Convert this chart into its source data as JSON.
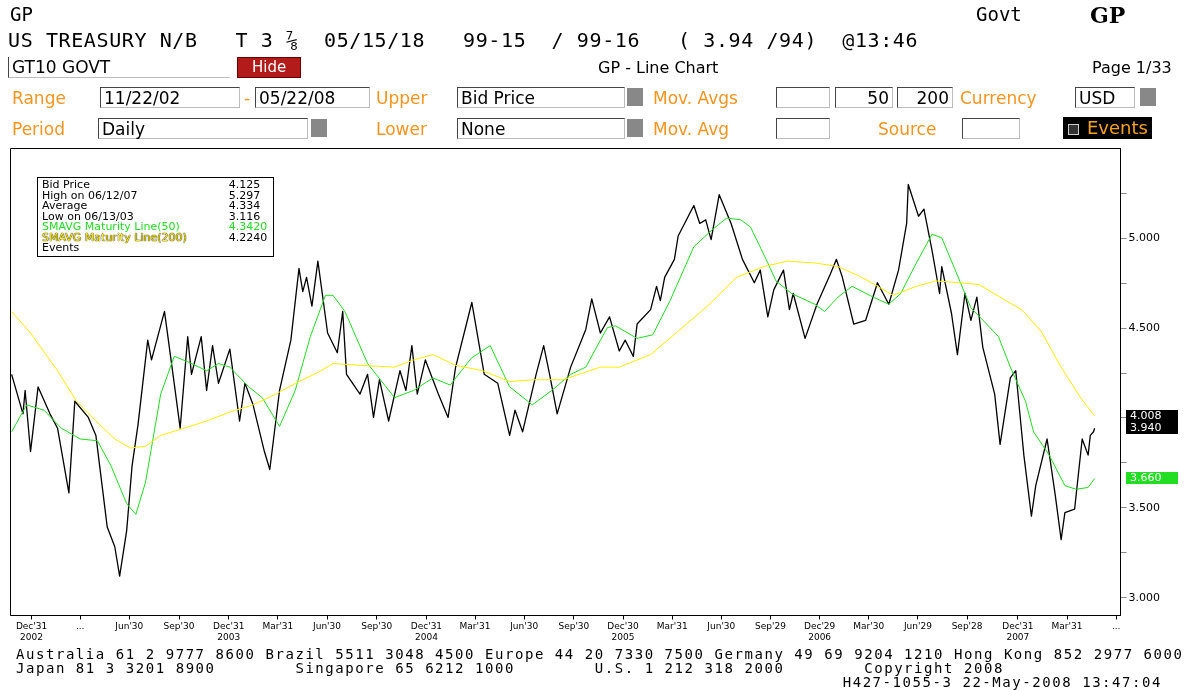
{
  "chart_data": {
    "type": "line",
    "title": "GP - Line Chart",
    "subtitle": "US TREASURY N/B   T 3 ⅞  05/15/18   99-15  / 99-16   ( 3.94 /94)  @13:46",
    "xlim": [
      "2002-11-22",
      "2008-07-08"
    ],
    "ylim": [
      2.9,
      5.5
    ],
    "xticks": [
      {
        "value": "2002-12-31",
        "label": "Dec'31\n2002"
      },
      {
        "value": "2003-03-31",
        "label": "..."
      },
      {
        "value": "2003-06-30",
        "label": "Jun'30"
      },
      {
        "value": "2003-09-30",
        "label": "Sep'30"
      },
      {
        "value": "2003-12-31",
        "label": "Dec'31\n2003"
      },
      {
        "value": "2004-03-31",
        "label": "Mar'31"
      },
      {
        "value": "2004-06-30",
        "label": "Jun'30"
      },
      {
        "value": "2004-09-30",
        "label": "Sep'30"
      },
      {
        "value": "2004-12-31",
        "label": "Dec'31\n2004"
      },
      {
        "value": "2005-03-31",
        "label": "Mar'31"
      },
      {
        "value": "2005-06-30",
        "label": "Jun'30"
      },
      {
        "value": "2005-09-30",
        "label": "Sep'30"
      },
      {
        "value": "2005-12-30",
        "label": "Dec'30\n2005"
      },
      {
        "value": "2006-03-31",
        "label": "Mar'31"
      },
      {
        "value": "2006-06-30",
        "label": "Jun'30"
      },
      {
        "value": "2006-09-29",
        "label": "Sep'29"
      },
      {
        "value": "2006-12-29",
        "label": "Dec'29\n2006"
      },
      {
        "value": "2007-03-30",
        "label": "Mar'30"
      },
      {
        "value": "2007-06-29",
        "label": "Jun'29"
      },
      {
        "value": "2007-09-28",
        "label": "Sep'28"
      },
      {
        "value": "2007-12-31",
        "label": "Dec'31\n2007"
      },
      {
        "value": "2008-03-31",
        "label": "Mar'31"
      },
      {
        "value": "2008-06-30",
        "label": "..."
      }
    ],
    "yticks": [
      {
        "value": 3,
        "label": "3.000"
      },
      {
        "value": 3.25,
        "label": null
      },
      {
        "value": 3.5,
        "label": "3.500"
      },
      {
        "value": 3.75,
        "label": null
      },
      {
        "value": 4,
        "label": null
      },
      {
        "value": 4.25,
        "label": null
      },
      {
        "value": 4.5,
        "label": "4.500"
      },
      {
        "value": 4.75,
        "label": null
      },
      {
        "value": 5,
        "label": "5.000"
      },
      {
        "value": 5.25,
        "label": null
      }
    ],
    "legend": "top left",
    "series": [
      {
        "name": "Bid Price",
        "color": "#000000",
        "x": [
          "2002-11-25",
          "2002-12-16",
          "2002-12-20",
          "2002-12-30",
          "2003-01-13",
          "2003-02-04",
          "2003-02-18",
          "2003-03-11",
          "2003-03-22",
          "2003-04-16",
          "2003-04-30",
          "2003-05-21",
          "2003-06-04",
          "2003-06-13",
          "2003-06-26",
          "2003-07-06",
          "2003-07-17",
          "2003-08-04",
          "2003-08-11",
          "2003-09-04",
          "2003-09-22",
          "2003-10-03",
          "2003-10-17",
          "2003-10-24",
          "2003-11-11",
          "2003-11-21",
          "2003-12-02",
          "2003-12-13",
          "2004-01-03",
          "2004-01-21",
          "2004-01-31",
          "2004-02-15",
          "2004-03-07",
          "2004-03-17",
          "2004-04-04",
          "2004-04-25",
          "2004-05-10",
          "2004-05-17",
          "2004-05-24",
          "2004-06-03",
          "2004-06-14",
          "2004-07-02",
          "2004-07-20",
          "2004-07-30",
          "2004-08-06",
          "2004-08-31",
          "2004-09-14",
          "2004-09-25",
          "2004-10-06",
          "2004-10-23",
          "2004-11-13",
          "2004-11-24",
          "2004-12-05",
          "2004-12-15",
          "2004-12-30",
          "2005-01-23",
          "2005-02-10",
          "2005-02-24",
          "2005-03-26",
          "2005-04-18",
          "2005-05-13",
          "2005-06-04",
          "2005-06-14",
          "2005-06-28",
          "2005-07-23",
          "2005-08-06",
          "2005-08-17",
          "2005-08-31",
          "2005-09-25",
          "2005-10-23",
          "2005-11-03",
          "2005-11-19",
          "2005-12-06",
          "2005-12-24",
          "2006-01-04",
          "2006-01-19",
          "2006-01-26",
          "2006-02-20",
          "2006-03-03",
          "2006-03-10",
          "2006-03-18",
          "2006-04-05",
          "2006-04-12",
          "2006-05-11",
          "2006-05-22",
          "2006-06-02",
          "2006-06-12",
          "2006-06-27",
          "2006-07-19",
          "2006-08-09",
          "2006-08-31",
          "2006-09-11",
          "2006-09-25",
          "2006-10-06",
          "2006-10-24",
          "2006-11-04",
          "2006-11-11",
          "2006-12-03",
          "2006-12-25",
          "2007-01-19",
          "2007-01-30",
          "2007-02-10",
          "2007-03-03",
          "2007-03-25",
          "2007-04-16",
          "2007-05-07",
          "2007-05-25",
          "2007-06-09",
          "2007-06-12",
          "2007-07-01",
          "2007-07-11",
          "2007-07-26",
          "2007-08-09",
          "2007-08-13",
          "2007-08-31",
          "2007-09-11",
          "2007-09-25",
          "2007-10-06",
          "2007-10-17",
          "2007-10-28",
          "2007-11-19",
          "2007-11-29",
          "2007-12-18",
          "2007-12-28",
          "2008-01-12",
          "2008-01-26",
          "2008-02-03",
          "2008-02-24",
          "2008-03-10",
          "2008-03-21",
          "2008-03-28",
          "2008-04-15",
          "2008-04-29",
          "2008-05-10",
          "2008-05-14",
          "2008-05-20",
          "2008-05-22"
        ],
        "values": [
          4.24,
          4.02,
          4.15,
          3.81,
          4.17,
          4.02,
          3.94,
          3.58,
          4.09,
          4.0,
          3.9,
          3.39,
          3.28,
          3.116,
          3.37,
          3.73,
          3.96,
          4.43,
          4.32,
          4.59,
          4.19,
          3.94,
          4.45,
          4.24,
          4.45,
          4.15,
          4.4,
          4.19,
          4.38,
          3.98,
          4.19,
          4.07,
          3.81,
          3.71,
          4.15,
          4.43,
          4.83,
          4.7,
          4.78,
          4.62,
          4.87,
          4.47,
          4.36,
          4.59,
          4.24,
          4.13,
          4.24,
          4.0,
          4.21,
          3.98,
          4.26,
          4.15,
          4.4,
          4.13,
          4.32,
          4.13,
          4.0,
          4.28,
          4.64,
          4.24,
          4.19,
          3.9,
          4.04,
          3.92,
          4.24,
          4.4,
          4.24,
          4.02,
          4.28,
          4.49,
          4.66,
          4.47,
          4.56,
          4.37,
          4.43,
          4.34,
          4.52,
          4.6,
          4.73,
          4.65,
          4.78,
          4.88,
          5.01,
          5.18,
          5.08,
          5.1,
          4.99,
          5.24,
          5.08,
          4.88,
          4.75,
          4.82,
          4.56,
          4.71,
          4.82,
          4.6,
          4.69,
          4.44,
          4.63,
          4.8,
          4.88,
          4.78,
          4.52,
          4.54,
          4.75,
          4.63,
          4.82,
          5.08,
          5.297,
          5.12,
          5.16,
          4.93,
          4.69,
          4.84,
          4.58,
          4.35,
          4.69,
          4.54,
          4.67,
          4.39,
          4.13,
          3.85,
          4.22,
          4.26,
          3.79,
          3.45,
          3.62,
          3.88,
          3.57,
          3.32,
          3.47,
          3.49,
          3.88,
          3.79,
          3.9,
          3.92,
          3.94
        ]
      },
      {
        "name": "SMAVG Maturity Line(50)",
        "color": "#22dd22",
        "x": [
          "2002-11-25",
          "2002-12-23",
          "2003-01-24",
          "2003-02-25",
          "2003-04-01",
          "2003-05-03",
          "2003-05-28",
          "2003-06-26",
          "2003-07-13",
          "2003-07-31",
          "2003-08-28",
          "2003-09-22",
          "2003-10-17",
          "2003-11-21",
          "2003-12-13",
          "2004-01-03",
          "2004-02-07",
          "2004-03-03",
          "2004-04-04",
          "2004-05-03",
          "2004-05-31",
          "2004-06-28",
          "2004-07-12",
          "2004-08-03",
          "2004-09-14",
          "2004-11-03",
          "2004-12-08",
          "2005-01-13",
          "2005-02-14",
          "2005-03-25",
          "2005-04-29",
          "2005-06-04",
          "2005-07-16",
          "2005-08-21",
          "2005-09-25",
          "2005-10-23",
          "2005-11-19",
          "2005-12-02",
          "2005-12-17",
          "2006-01-26",
          "2006-02-24",
          "2006-03-28",
          "2006-05-11",
          "2006-06-16",
          "2006-07-11",
          "2006-08-06",
          "2006-08-24",
          "2006-09-25",
          "2006-10-10",
          "2006-11-08",
          "2006-12-21",
          "2007-01-08",
          "2007-02-02",
          "2007-02-28",
          "2007-04-08",
          "2007-05-07",
          "2007-05-29",
          "2007-06-27",
          "2007-07-26",
          "2007-08-13",
          "2007-09-07",
          "2007-10-06",
          "2007-11-04",
          "2007-11-26",
          "2007-12-18",
          "2008-01-15",
          "2008-01-30",
          "2008-02-28",
          "2008-03-28",
          "2008-04-18",
          "2008-05-10",
          "2008-05-22"
        ],
        "values": [
          3.92,
          4.07,
          4.04,
          3.94,
          3.88,
          3.87,
          3.73,
          3.52,
          3.46,
          3.64,
          4.13,
          4.34,
          4.31,
          4.26,
          4.3,
          4.28,
          4.17,
          4.11,
          3.95,
          4.15,
          4.45,
          4.68,
          4.68,
          4.59,
          4.3,
          4.11,
          4.15,
          4.22,
          4.18,
          4.33,
          4.4,
          4.17,
          4.07,
          4.15,
          4.24,
          4.28,
          4.43,
          4.5,
          4.51,
          4.44,
          4.46,
          4.65,
          4.95,
          5.05,
          5.11,
          5.1,
          5.06,
          4.86,
          4.76,
          4.69,
          4.63,
          4.59,
          4.67,
          4.73,
          4.67,
          4.63,
          4.69,
          4.86,
          5.02,
          5.0,
          4.82,
          4.61,
          4.52,
          4.45,
          4.28,
          4.09,
          3.92,
          3.79,
          3.62,
          3.6,
          3.61,
          3.66
        ]
      },
      {
        "name": "SMAVG Maturity Line(200)",
        "color": "#ffee00",
        "x": [
          "2002-11-25",
          "2002-12-30",
          "2003-02-18",
          "2003-03-25",
          "2003-05-07",
          "2003-06-04",
          "2003-07-03",
          "2003-07-31",
          "2003-08-28",
          "2003-10-10",
          "2003-11-21",
          "2004-01-03",
          "2004-02-15",
          "2004-03-28",
          "2004-05-10",
          "2004-06-14",
          "2004-07-12",
          "2004-08-31",
          "2004-11-03",
          "2004-12-08",
          "2005-01-13",
          "2005-02-24",
          "2005-04-15",
          "2005-06-04",
          "2005-07-23",
          "2005-09-11",
          "2005-11-19",
          "2005-12-24",
          "2006-02-20",
          "2006-04-12",
          "2006-06-09",
          "2006-07-29",
          "2006-09-18",
          "2006-10-31",
          "2006-12-21",
          "2007-02-02",
          "2007-03-18",
          "2007-05-15",
          "2007-06-27",
          "2007-08-02",
          "2007-09-14",
          "2007-10-21",
          "2007-12-10",
          "2008-01-08",
          "2008-02-13",
          "2008-03-21",
          "2008-04-26",
          "2008-05-22"
        ],
        "values": [
          4.59,
          4.47,
          4.26,
          4.09,
          3.96,
          3.88,
          3.83,
          3.84,
          3.9,
          3.94,
          3.98,
          4.03,
          4.07,
          4.13,
          4.2,
          4.25,
          4.3,
          4.29,
          4.28,
          4.32,
          4.35,
          4.29,
          4.26,
          4.2,
          4.21,
          4.21,
          4.28,
          4.28,
          4.35,
          4.48,
          4.63,
          4.78,
          4.84,
          4.87,
          4.86,
          4.84,
          4.78,
          4.68,
          4.73,
          4.76,
          4.75,
          4.74,
          4.65,
          4.6,
          4.48,
          4.28,
          4.11,
          4.008
        ]
      }
    ],
    "annotations": [
      "GP",
      "Govt",
      "GP",
      "GT10 GOVT",
      "Hide",
      "Page 1/33",
      "Range",
      "11/22/02",
      "-",
      "05/22/08",
      "Upper",
      "Bid Price",
      "Mov. Avgs",
      "50",
      "200",
      "Currency",
      "USD",
      "Period",
      "Daily",
      "Lower",
      "None",
      "Mov. Avg",
      "Source",
      "Events",
      "Australia 61 2 9777 8600 Brazil 5511 3048 4500 Europe 44 20 7330 7500 Germany 49 69 9204 1210 Hong Kong 852 2977 6000",
      "Japan 81 3 3201 8900        Singapore 65 6212 1000        U.S. 1 212 318 2000        Copyright 2008",
      "H427-1055-3 22-May-2008 13:47:04",
      "4.125",
      "High on 06/12/07",
      "5.297",
      "Average",
      "4.334",
      "Low on 06/13/03",
      "3.116",
      "4.3420",
      "4.2240",
      "Events",
      "4.008",
      "3.940",
      "3.660"
    ]
  }
}
